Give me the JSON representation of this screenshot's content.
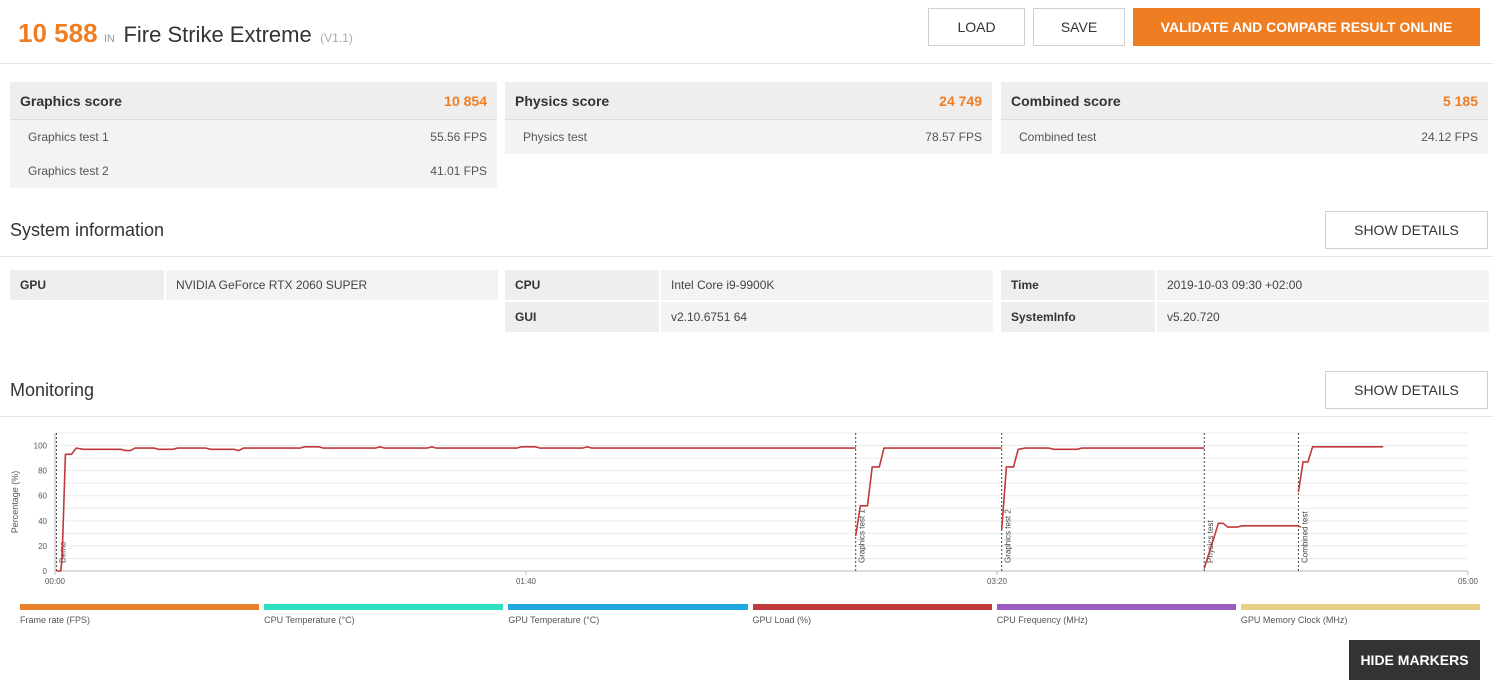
{
  "header": {
    "score": "10 588",
    "in_label": "IN",
    "test_name": "Fire Strike Extreme",
    "version": "(V1.1)",
    "load_label": "LOAD",
    "save_label": "SAVE",
    "validate_label": "VALIDATE AND COMPARE RESULT ONLINE"
  },
  "scores": [
    {
      "label": "Graphics score",
      "value": "10 854",
      "rows": [
        {
          "label": "Graphics test 1",
          "value": "55.56 FPS"
        },
        {
          "label": "Graphics test 2",
          "value": "41.01 FPS"
        }
      ]
    },
    {
      "label": "Physics score",
      "value": "24 749",
      "rows": [
        {
          "label": "Physics test",
          "value": "78.57 FPS"
        }
      ]
    },
    {
      "label": "Combined score",
      "value": "5 185",
      "rows": [
        {
          "label": "Combined test",
          "value": "24.12 FPS"
        }
      ]
    }
  ],
  "system_info": {
    "title": "System information",
    "details_label": "SHOW DETAILS",
    "gpu_key": "GPU",
    "gpu_val": "NVIDIA GeForce RTX 2060 SUPER",
    "cpu_key": "CPU",
    "cpu_val": "Intel Core i9-9900K",
    "gui_key": "GUI",
    "gui_val": "v2.10.6751 64",
    "time_key": "Time",
    "time_val": "2019-10-03 09:30 +02:00",
    "sysinfo_key": "SystemInfo",
    "sysinfo_val": "v5.20.720"
  },
  "monitoring": {
    "title": "Monitoring",
    "details_label": "SHOW DETAILS",
    "hide_markers_label": "HIDE MARKERS"
  },
  "colors": {
    "accent": "#ef7d22",
    "frame_rate": "#e8822a",
    "cpu_temp": "#2fe0c0",
    "gpu_temp": "#1fa8e0",
    "gpu_load": "#c0393b",
    "cpu_freq": "#9a5cc0",
    "gpu_mem_clock": "#e8cf86"
  },
  "chart_data": {
    "type": "line",
    "ylabel": "Percentage (%)",
    "ylim": [
      0,
      110
    ],
    "yticks": [
      0,
      20,
      40,
      60,
      80,
      100
    ],
    "xlim": [
      0,
      300
    ],
    "xticks": [
      0,
      100,
      200,
      300
    ],
    "xtick_labels": [
      "00:00",
      "01:40",
      "03:20",
      "05:00"
    ],
    "grid": true,
    "markers": [
      {
        "label": "Demo",
        "x": 0.3
      },
      {
        "label": "Graphics test 1",
        "x": 170
      },
      {
        "label": "Graphics test 2",
        "x": 201
      },
      {
        "label": "Physics test",
        "x": 244
      },
      {
        "label": "Combined test",
        "x": 264
      }
    ],
    "series": [
      {
        "name": "GPU Load (%)",
        "color": "#c0393b",
        "segments": [
          [
            [
              0.3,
              0
            ],
            [
              1.2,
              0
            ],
            [
              1.5,
              10
            ],
            [
              2.2,
              93
            ],
            [
              3.5,
              93
            ],
            [
              4.5,
              98
            ],
            [
              6,
              97
            ],
            [
              14,
              97
            ],
            [
              15,
              96
            ],
            [
              16,
              96
            ],
            [
              17,
              98
            ],
            [
              21,
              98
            ],
            [
              22,
              97
            ],
            [
              25,
              97
            ],
            [
              26,
              98
            ],
            [
              32,
              98
            ],
            [
              33,
              97
            ],
            [
              38,
              97
            ],
            [
              39,
              96
            ],
            [
              40,
              98
            ],
            [
              52,
              98
            ],
            [
              53,
              99
            ],
            [
              56,
              99
            ],
            [
              57,
              98
            ],
            [
              68,
              98
            ],
            [
              69,
              99
            ],
            [
              70,
              98
            ],
            [
              79,
              98
            ],
            [
              80,
              99
            ],
            [
              81,
              98
            ],
            [
              98,
              98
            ],
            [
              99,
              99
            ],
            [
              102,
              99
            ],
            [
              103,
              98
            ],
            [
              112,
              98
            ],
            [
              113,
              99
            ],
            [
              114,
              98
            ],
            [
              170,
              98
            ]
          ],
          [
            [
              170,
              28
            ],
            [
              171,
              52
            ],
            [
              172.5,
              52
            ],
            [
              173.5,
              83
            ],
            [
              175,
              83
            ],
            [
              176,
              98
            ],
            [
              201,
              98
            ]
          ],
          [
            [
              201,
              33
            ],
            [
              202,
              83
            ],
            [
              203.5,
              83
            ],
            [
              204.5,
              97
            ],
            [
              206,
              98
            ],
            [
              211,
              98
            ],
            [
              212,
              97
            ],
            [
              217,
              97
            ],
            [
              218,
              98
            ],
            [
              244,
              98
            ]
          ],
          [
            [
              244,
              2
            ],
            [
              246,
              26
            ],
            [
              247,
              38
            ],
            [
              248,
              38
            ],
            [
              249,
              35
            ],
            [
              251,
              35
            ],
            [
              252,
              36
            ],
            [
              264,
              36
            ],
            [
              264.5,
              35
            ]
          ],
          [
            [
              264,
              63
            ],
            [
              265,
              87
            ],
            [
              266,
              87
            ],
            [
              267,
              99
            ],
            [
              282,
              99
            ]
          ]
        ]
      }
    ]
  },
  "legend": [
    {
      "label": "Frame rate (FPS)",
      "color": "#e8822a"
    },
    {
      "label": "CPU Temperature (°C)",
      "color": "#2fe0c0"
    },
    {
      "label": "GPU Temperature (°C)",
      "color": "#1fa8e0"
    },
    {
      "label": "GPU Load (%)",
      "color": "#c0393b"
    },
    {
      "label": "CPU Frequency (MHz)",
      "color": "#9a5cc0"
    },
    {
      "label": "GPU Memory Clock (MHz)",
      "color": "#e8cf86"
    }
  ]
}
